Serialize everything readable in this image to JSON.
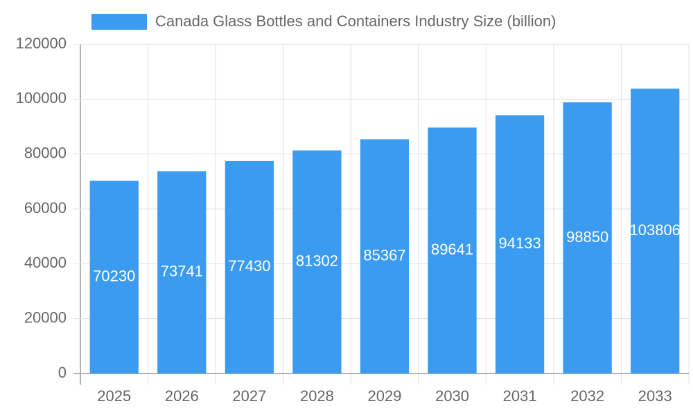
{
  "chart_data": {
    "type": "bar",
    "series": [
      {
        "name": "Canada Glass Bottles and Containers Industry Size (billion)",
        "color": "#3a9bf0",
        "values": [
          70230,
          73741,
          77430,
          81302,
          85367,
          89641,
          94133,
          98850,
          103806
        ]
      }
    ],
    "categories": [
      "2025",
      "2026",
      "2027",
      "2028",
      "2029",
      "2030",
      "2031",
      "2032",
      "2033"
    ],
    "ylim": [
      0,
      120000
    ],
    "yticks": [
      0,
      20000,
      40000,
      60000,
      80000,
      100000,
      120000
    ],
    "grid": true,
    "legend": "top"
  }
}
